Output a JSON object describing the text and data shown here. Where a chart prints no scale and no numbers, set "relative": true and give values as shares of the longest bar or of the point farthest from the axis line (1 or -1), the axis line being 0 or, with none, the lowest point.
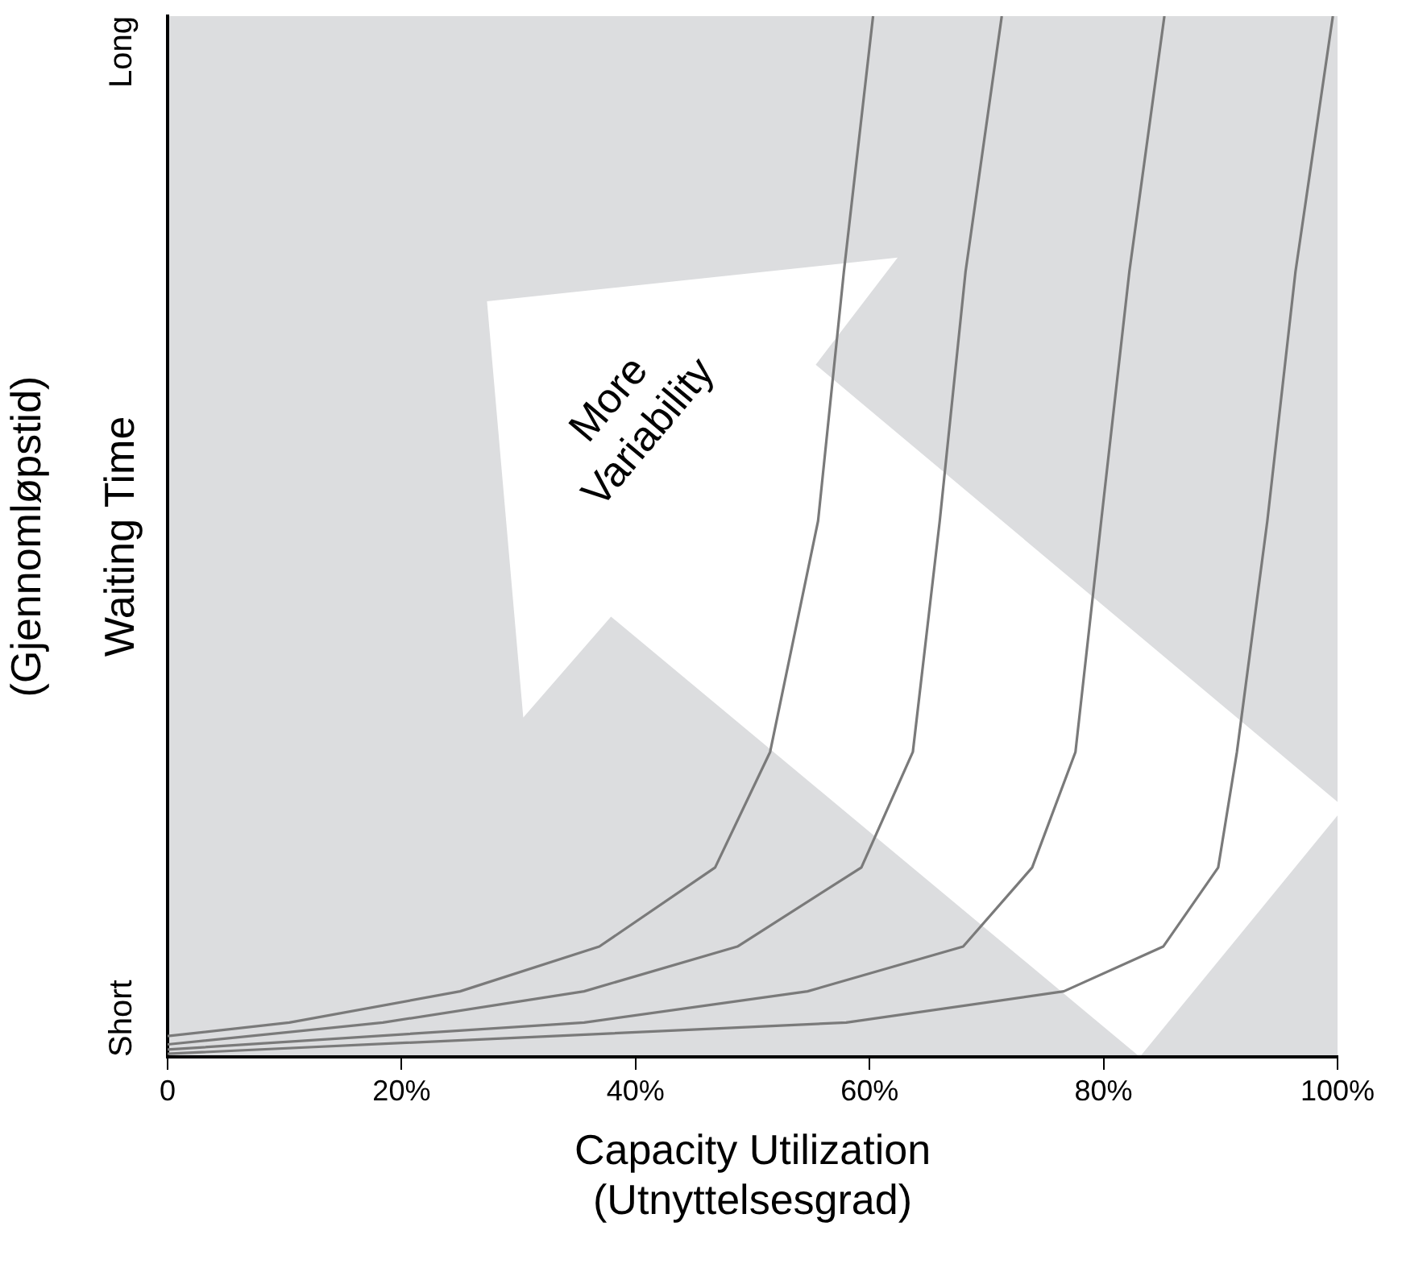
{
  "chart_data": {
    "type": "line",
    "relative": true,
    "xlabel": "Capacity Utilization\n(Utnyttelsesgrad)",
    "ylabel": "Waiting Time\n(Gjennomløpstid)",
    "xlim": [
      0,
      100
    ],
    "xticks": [
      0,
      {
        "value": 20,
        "label": "20%"
      },
      {
        "value": 40,
        "label": "40%"
      },
      {
        "value": 60,
        "label": "60%"
      },
      {
        "value": 80,
        "label": "80%"
      },
      {
        "value": 100,
        "label": "100%"
      }
    ],
    "series": [
      {
        "color": "#7a7a7a",
        "x": [
          0,
          10.4,
          25,
          36.9,
          46.8,
          51.5,
          55.6,
          57.8,
          60.3
        ],
        "values": [
          0.02,
          0.033,
          0.063,
          0.106,
          0.182,
          0.293,
          0.515,
          0.754,
          1
        ]
      },
      {
        "color": "#7a7a7a",
        "x": [
          0,
          18.4,
          35.6,
          48.7,
          59.3,
          63.7,
          66,
          68.2,
          71.3
        ],
        "values": [
          0.012,
          0.033,
          0.063,
          0.106,
          0.182,
          0.293,
          0.515,
          0.754,
          1
        ]
      },
      {
        "color": "#7a7a7a",
        "x": [
          0,
          35.6,
          54.7,
          68,
          73.9,
          77.6,
          79.8,
          82.2,
          85.2
        ],
        "values": [
          0.007,
          0.033,
          0.063,
          0.106,
          0.182,
          0.293,
          0.515,
          0.754,
          1
        ]
      },
      {
        "color": "#7a7a7a",
        "x": [
          0,
          58,
          76.6,
          85.1,
          89.8,
          91.4,
          94,
          96.4,
          99.6
        ],
        "values": [
          0.003,
          0.033,
          0.063,
          0.106,
          0.182,
          0.293,
          0.515,
          0.754,
          1
        ]
      }
    ],
    "annotations": [
      "Short",
      "Long",
      "More\nVariability"
    ],
    "grid": false,
    "legend": false,
    "marker": "none",
    "line_style": "solid"
  }
}
